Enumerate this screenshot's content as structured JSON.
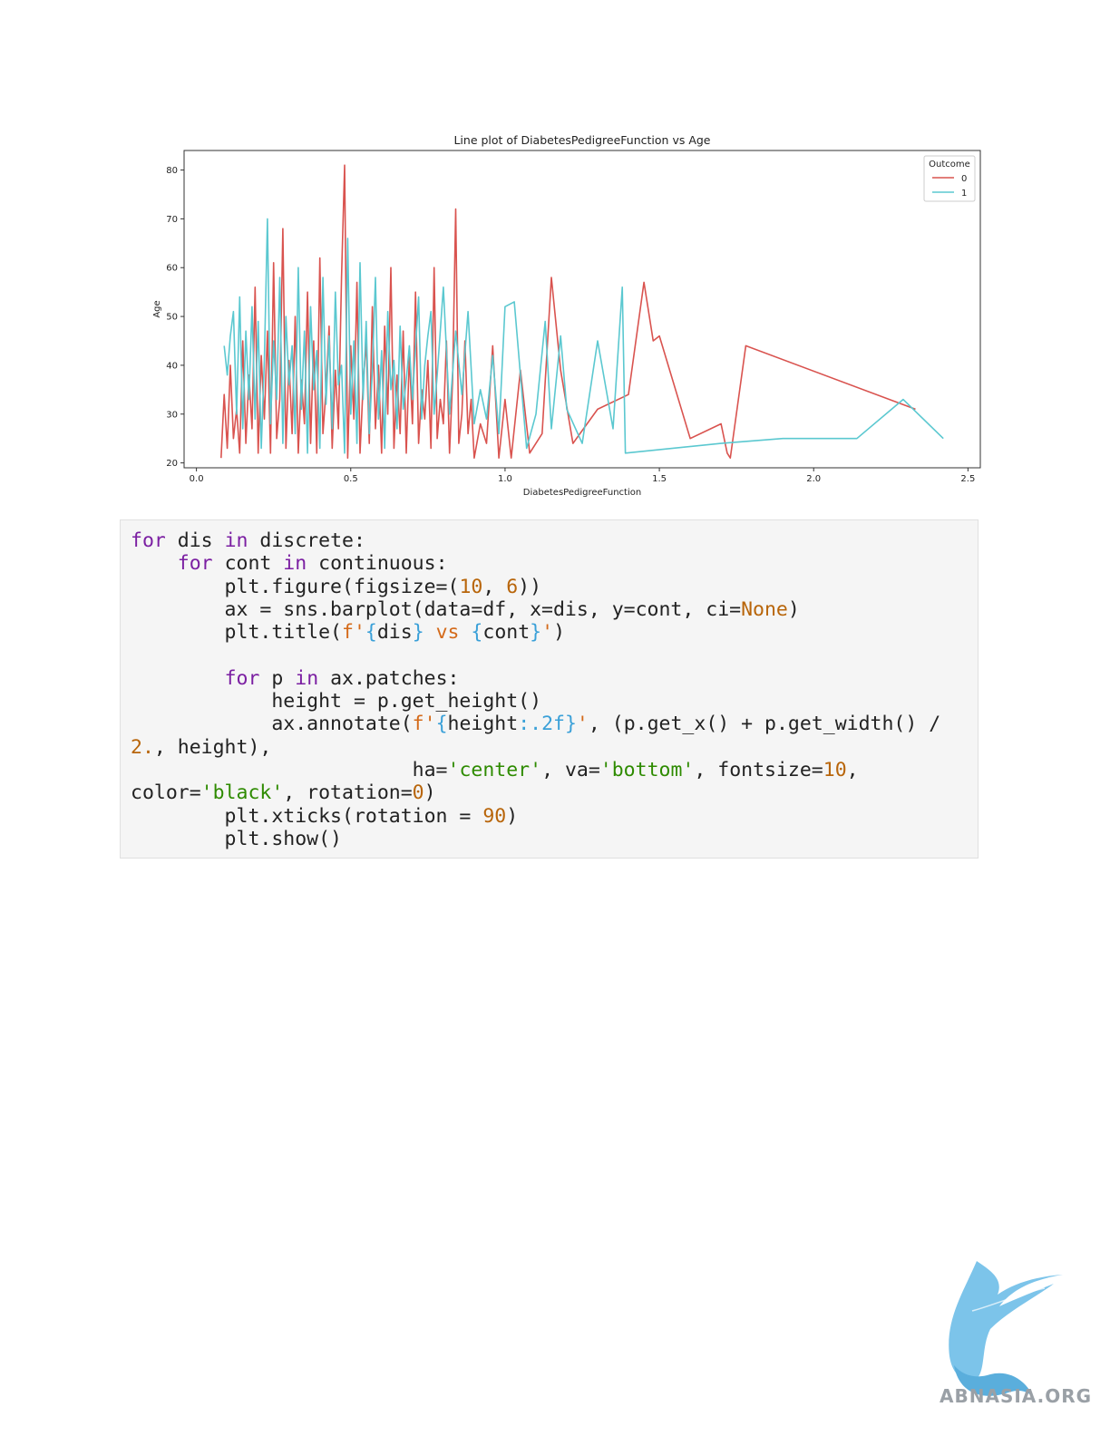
{
  "chart_data": {
    "type": "line",
    "title": "Line plot of DiabetesPedigreeFunction vs Age",
    "xlabel": "DiabetesPedigreeFunction",
    "ylabel": "Age",
    "xlim": [
      -0.04,
      2.54
    ],
    "ylim": [
      19,
      84
    ],
    "xticks": [
      "0.0",
      "0.5",
      "1.0",
      "1.5",
      "2.0",
      "2.5"
    ],
    "xtick_values": [
      0,
      0.5,
      1.0,
      1.5,
      2.0,
      2.5
    ],
    "yticks": [
      "20",
      "30",
      "40",
      "50",
      "60",
      "70",
      "80"
    ],
    "ytick_values": [
      20,
      30,
      40,
      50,
      60,
      70,
      80
    ],
    "grid": false,
    "legend": {
      "title": "Outcome",
      "placement": "top-right"
    },
    "series": [
      {
        "name": "0",
        "color": "#d9534f",
        "points": [
          [
            0.08,
            21
          ],
          [
            0.09,
            34
          ],
          [
            0.1,
            23
          ],
          [
            0.11,
            40
          ],
          [
            0.12,
            25
          ],
          [
            0.13,
            31
          ],
          [
            0.14,
            22
          ],
          [
            0.15,
            45
          ],
          [
            0.16,
            24
          ],
          [
            0.17,
            38
          ],
          [
            0.18,
            27
          ],
          [
            0.19,
            56
          ],
          [
            0.2,
            22
          ],
          [
            0.21,
            42
          ],
          [
            0.22,
            29
          ],
          [
            0.23,
            47
          ],
          [
            0.24,
            22
          ],
          [
            0.25,
            61
          ],
          [
            0.26,
            25
          ],
          [
            0.27,
            33
          ],
          [
            0.28,
            68
          ],
          [
            0.29,
            23
          ],
          [
            0.3,
            41
          ],
          [
            0.31,
            26
          ],
          [
            0.32,
            50
          ],
          [
            0.33,
            22
          ],
          [
            0.34,
            37
          ],
          [
            0.35,
            28
          ],
          [
            0.36,
            55
          ],
          [
            0.37,
            24
          ],
          [
            0.38,
            45
          ],
          [
            0.39,
            22
          ],
          [
            0.4,
            62
          ],
          [
            0.41,
            26
          ],
          [
            0.42,
            35
          ],
          [
            0.43,
            48
          ],
          [
            0.44,
            23
          ],
          [
            0.45,
            39
          ],
          [
            0.46,
            27
          ],
          [
            0.47,
            58
          ],
          [
            0.48,
            81
          ],
          [
            0.49,
            21
          ],
          [
            0.5,
            44
          ],
          [
            0.51,
            29
          ],
          [
            0.52,
            57
          ],
          [
            0.53,
            22
          ],
          [
            0.54,
            36
          ],
          [
            0.55,
            45
          ],
          [
            0.56,
            24
          ],
          [
            0.57,
            52
          ],
          [
            0.58,
            27
          ],
          [
            0.59,
            40
          ],
          [
            0.6,
            22
          ],
          [
            0.61,
            48
          ],
          [
            0.62,
            30
          ],
          [
            0.63,
            60
          ],
          [
            0.64,
            23
          ],
          [
            0.65,
            38
          ],
          [
            0.66,
            26
          ],
          [
            0.67,
            47
          ],
          [
            0.68,
            22
          ],
          [
            0.69,
            42
          ],
          [
            0.7,
            28
          ],
          [
            0.71,
            55
          ],
          [
            0.72,
            24
          ],
          [
            0.73,
            35
          ],
          [
            0.74,
            29
          ],
          [
            0.75,
            41
          ],
          [
            0.76,
            23
          ],
          [
            0.77,
            60
          ],
          [
            0.78,
            25
          ],
          [
            0.79,
            33
          ],
          [
            0.8,
            28
          ],
          [
            0.81,
            45
          ],
          [
            0.82,
            22
          ],
          [
            0.83,
            37
          ],
          [
            0.84,
            72
          ],
          [
            0.85,
            24
          ],
          [
            0.86,
            30
          ],
          [
            0.87,
            45
          ],
          [
            0.88,
            26
          ],
          [
            0.89,
            33
          ],
          [
            0.9,
            21
          ],
          [
            0.92,
            28
          ],
          [
            0.94,
            24
          ],
          [
            0.96,
            44
          ],
          [
            0.98,
            21
          ],
          [
            1.0,
            33
          ],
          [
            1.02,
            21
          ],
          [
            1.05,
            39
          ],
          [
            1.08,
            22
          ],
          [
            1.12,
            26
          ],
          [
            1.15,
            58
          ],
          [
            1.18,
            39
          ],
          [
            1.22,
            24
          ],
          [
            1.3,
            31
          ],
          [
            1.4,
            34
          ],
          [
            1.45,
            57
          ],
          [
            1.48,
            45
          ],
          [
            1.5,
            46
          ],
          [
            1.6,
            25
          ],
          [
            1.7,
            28
          ],
          [
            1.72,
            22
          ],
          [
            1.73,
            21
          ],
          [
            1.78,
            44
          ],
          [
            2.33,
            31
          ]
        ]
      },
      {
        "name": "1",
        "color": "#5bc8d0",
        "points": [
          [
            0.09,
            44
          ],
          [
            0.1,
            38
          ],
          [
            0.11,
            46
          ],
          [
            0.12,
            51
          ],
          [
            0.13,
            30
          ],
          [
            0.14,
            54
          ],
          [
            0.15,
            27
          ],
          [
            0.16,
            47
          ],
          [
            0.17,
            33
          ],
          [
            0.18,
            52
          ],
          [
            0.19,
            29
          ],
          [
            0.2,
            49
          ],
          [
            0.21,
            23
          ],
          [
            0.22,
            41
          ],
          [
            0.23,
            70
          ],
          [
            0.24,
            28
          ],
          [
            0.25,
            45
          ],
          [
            0.26,
            33
          ],
          [
            0.27,
            58
          ],
          [
            0.28,
            24
          ],
          [
            0.29,
            50
          ],
          [
            0.3,
            36
          ],
          [
            0.31,
            44
          ],
          [
            0.32,
            26
          ],
          [
            0.33,
            60
          ],
          [
            0.34,
            31
          ],
          [
            0.35,
            47
          ],
          [
            0.36,
            22
          ],
          [
            0.37,
            52
          ],
          [
            0.38,
            35
          ],
          [
            0.39,
            43
          ],
          [
            0.4,
            23
          ],
          [
            0.41,
            58
          ],
          [
            0.42,
            32
          ],
          [
            0.43,
            46
          ],
          [
            0.44,
            27
          ],
          [
            0.45,
            55
          ],
          [
            0.46,
            36
          ],
          [
            0.47,
            40
          ],
          [
            0.48,
            22
          ],
          [
            0.49,
            66
          ],
          [
            0.5,
            30
          ],
          [
            0.51,
            45
          ],
          [
            0.52,
            24
          ],
          [
            0.53,
            61
          ],
          [
            0.54,
            33
          ],
          [
            0.55,
            49
          ],
          [
            0.56,
            26
          ],
          [
            0.57,
            39
          ],
          [
            0.58,
            58
          ],
          [
            0.59,
            29
          ],
          [
            0.6,
            43
          ],
          [
            0.61,
            23
          ],
          [
            0.62,
            51
          ],
          [
            0.63,
            35
          ],
          [
            0.64,
            41
          ],
          [
            0.65,
            27
          ],
          [
            0.66,
            48
          ],
          [
            0.67,
            31
          ],
          [
            0.68,
            37
          ],
          [
            0.69,
            44
          ],
          [
            0.7,
            33
          ],
          [
            0.72,
            54
          ],
          [
            0.73,
            29
          ],
          [
            0.74,
            40
          ],
          [
            0.75,
            46
          ],
          [
            0.76,
            51
          ],
          [
            0.77,
            30
          ],
          [
            0.78,
            38
          ],
          [
            0.8,
            56
          ],
          [
            0.82,
            30
          ],
          [
            0.84,
            47
          ],
          [
            0.86,
            34
          ],
          [
            0.88,
            51
          ],
          [
            0.9,
            28
          ],
          [
            0.92,
            35
          ],
          [
            0.94,
            29
          ],
          [
            0.96,
            42
          ],
          [
            0.98,
            26
          ],
          [
            1.0,
            52
          ],
          [
            1.03,
            53
          ],
          [
            1.07,
            23
          ],
          [
            1.1,
            30
          ],
          [
            1.13,
            49
          ],
          [
            1.15,
            27
          ],
          [
            1.18,
            46
          ],
          [
            1.2,
            31
          ],
          [
            1.25,
            24
          ],
          [
            1.3,
            45
          ],
          [
            1.35,
            27
          ],
          [
            1.38,
            56
          ],
          [
            1.39,
            22
          ],
          [
            1.7,
            24
          ],
          [
            1.9,
            25
          ],
          [
            2.14,
            25
          ],
          [
            2.29,
            33
          ],
          [
            2.42,
            25
          ]
        ]
      }
    ]
  },
  "code": {
    "line1": {
      "k1": "for",
      "t1": " dis ",
      "k2": "in",
      "t2": " discrete:"
    },
    "line2": {
      "t0": "    ",
      "k1": "for",
      "t1": " cont ",
      "k2": "in",
      "t2": " continuous:"
    },
    "line3": {
      "t0": "        plt.figure(figsize=(",
      "n1": "10",
      "t1": ", ",
      "n2": "6",
      "t2": "))"
    },
    "line4": {
      "t0": "        ax = sns.barplot(data=df, x=dis, y=cont, ci=",
      "n1": "None",
      "t1": ")"
    },
    "line5": {
      "t0": "        plt.title(",
      "f1": "f'",
      "i1": "{",
      "t1": "dis",
      "i2": "}",
      "f2": " vs ",
      "i3": "{",
      "t2": "cont",
      "i4": "}",
      "f3": "'",
      "t3": ")"
    },
    "line7": {
      "t0": "        ",
      "k1": "for",
      "t1": " p ",
      "k2": "in",
      "t2": " ax.patches:"
    },
    "line8": {
      "t0": "            height = p.get_height()"
    },
    "line9": {
      "t0": "            ax.annotate(",
      "f1": "f'",
      "i1": "{",
      "t1": "height",
      "i2": ":.2f}",
      "f2": "'",
      "t2": ", (p.get_x() + p.get_width() /"
    },
    "line10": {
      "n1": "2.",
      "t1": ", height),"
    },
    "line11": {
      "t0": "                        ha=",
      "s1": "'center'",
      "t1": ", va=",
      "s2": "'bottom'",
      "t2": ", fontsize=",
      "n1": "10",
      "t3": ","
    },
    "line12": {
      "t0": "color=",
      "s1": "'black'",
      "t1": ", rotation=",
      "n1": "0",
      "t2": ")"
    },
    "line13": {
      "t0": "        plt.xticks(rotation = ",
      "n1": "90",
      "t1": ")"
    },
    "line14": {
      "t0": "        plt.show()"
    }
  },
  "logo": {
    "text": "ABNASIA.ORG",
    "icon": "griffin-logo-icon",
    "color": "#6ab7e0"
  }
}
